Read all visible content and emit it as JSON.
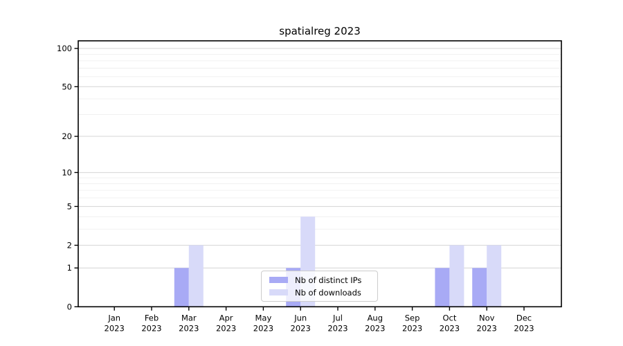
{
  "title": "spatialreg 2023",
  "legend": {
    "items": [
      {
        "label": "Nb of distinct IPs",
        "color": "#a8aaf5"
      },
      {
        "label": "Nb of downloads",
        "color": "#d8daf9"
      }
    ]
  },
  "chart_data": {
    "type": "bar",
    "title": "spatialreg 2023",
    "categories": [
      "Jan 2023",
      "Feb 2023",
      "Mar 2023",
      "Apr 2023",
      "May 2023",
      "Jun 2023",
      "Jul 2023",
      "Aug 2023",
      "Sep 2023",
      "Oct 2023",
      "Nov 2023",
      "Dec 2023"
    ],
    "series": [
      {
        "name": "Nb of distinct IPs",
        "color": "#a8aaf5",
        "values": [
          0,
          0,
          1,
          0,
          0,
          1,
          0,
          0,
          0,
          1,
          1,
          0
        ]
      },
      {
        "name": "Nb of downloads",
        "color": "#d8daf9",
        "values": [
          0,
          0,
          2,
          0,
          0,
          4,
          0,
          0,
          0,
          2,
          2,
          0
        ]
      }
    ],
    "xlabel": "",
    "ylabel": "",
    "y_scale": "log1p",
    "ylim": [
      0,
      100
    ],
    "y_major_ticks": [
      0,
      1,
      2,
      5,
      10,
      20,
      50,
      100
    ],
    "y_minor_ticks": [
      3,
      4,
      6,
      7,
      8,
      9,
      30,
      40,
      60,
      70,
      80,
      90
    ],
    "grid": true,
    "legend_position": "lower center"
  },
  "colors": {
    "grid_major": "#d4d4d4",
    "grid_minor": "#efefef",
    "spine": "#000000",
    "tick_label": "#000000",
    "background": "#ffffff"
  }
}
